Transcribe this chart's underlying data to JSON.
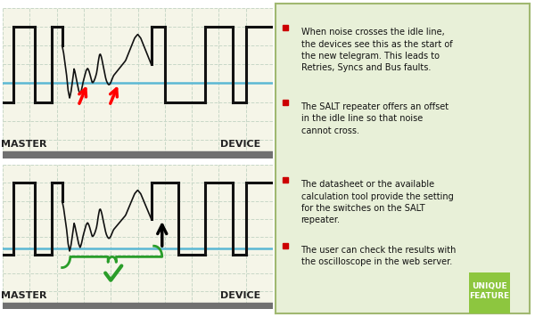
{
  "bg_color": "#ffffff",
  "panel_bg": "#f5f5e8",
  "grid_color": "#c8d8c8",
  "signal_color": "#111111",
  "idle_line_color": "#5bb8d4",
  "label_color": "#222222",
  "text_panel_bg": "#e8f0d8",
  "text_panel_border": "#a0b870",
  "bullet_color": "#cc0000",
  "bottom_bar_color": "#707070",
  "bullet_texts": [
    "When noise crosses the idle line,\nthe devices see this as the start of\nthe new telegram. This leads to\nRetries, Syncs and Bus faults.",
    "The SALT repeater offers an offset\nin the idle line so that noise\ncannot cross.",
    "The datasheet or the available\ncalculation tool provide the setting\nfor the switches on the SALT\nrepeater.",
    "The user can check the results with\nthe oscilloscope in the web server."
  ],
  "unique_feature_color": "#8dc63f",
  "unique_feature_text": "UNIQUE\nFEATURE"
}
